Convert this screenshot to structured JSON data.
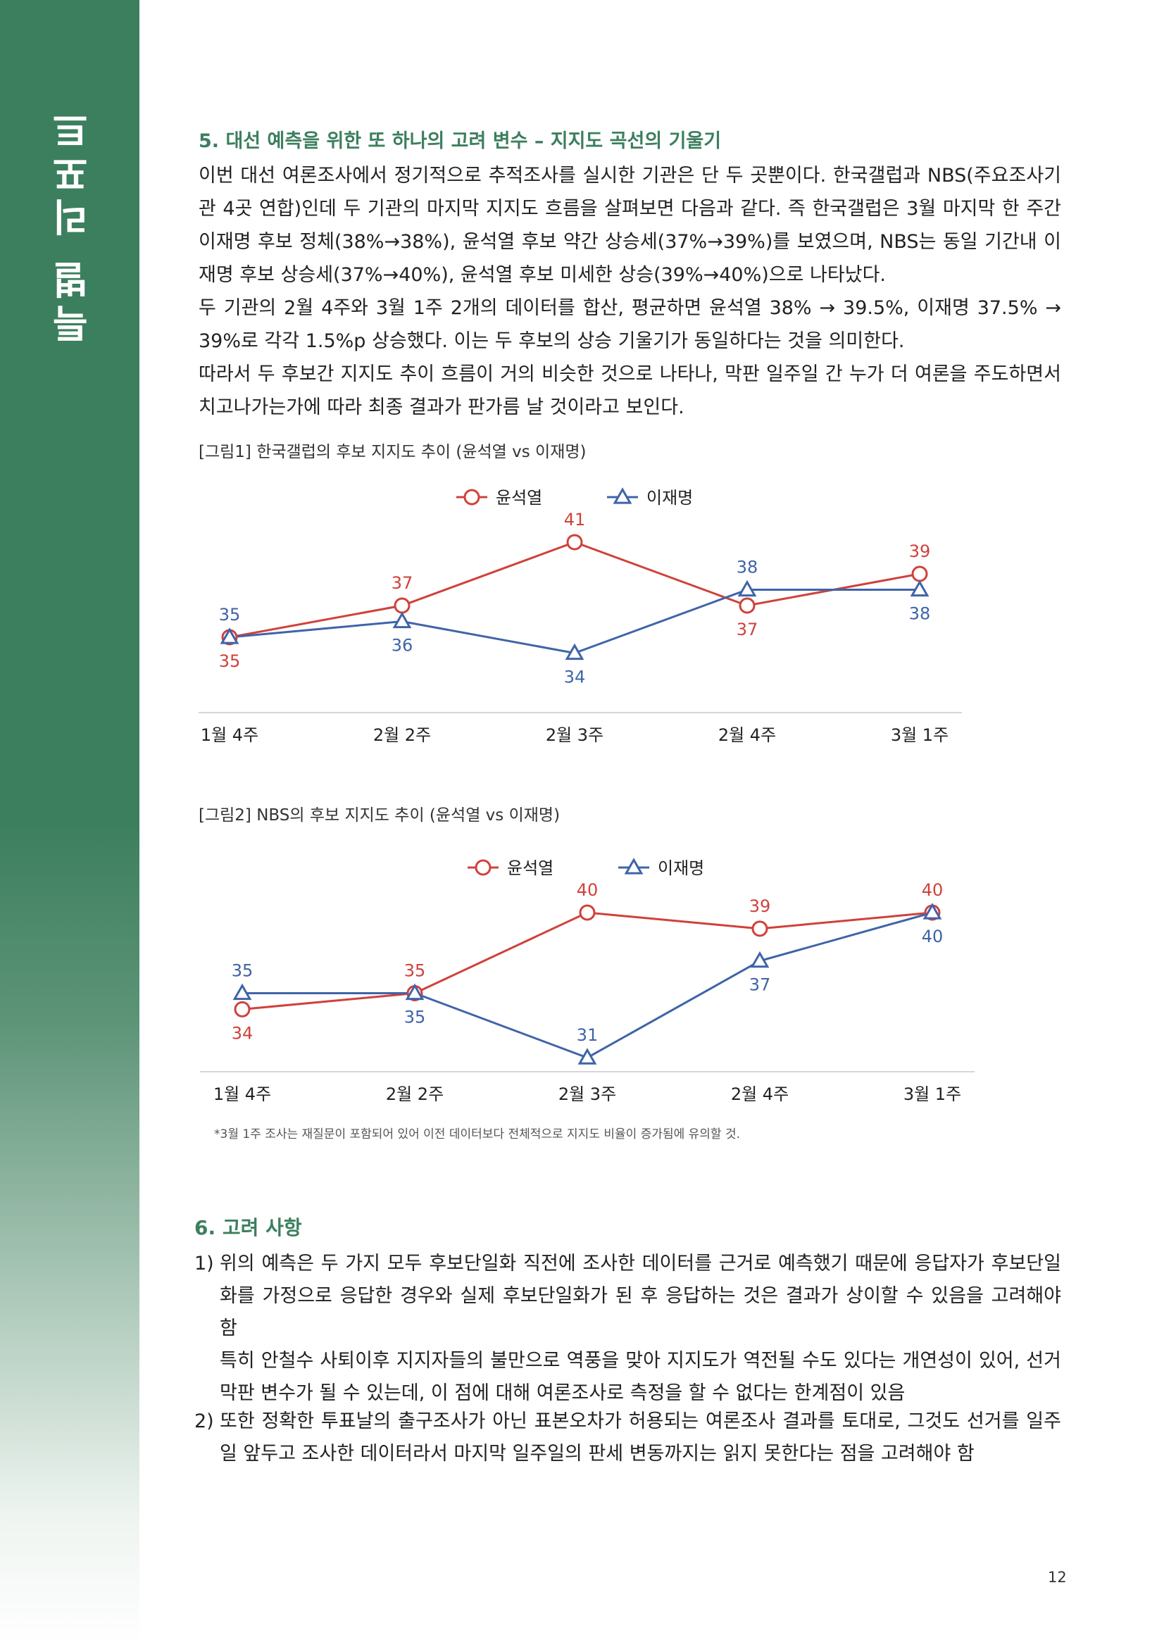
{
  "sidebar": {
    "label": "특별 리포트",
    "color": "#3c7f5e"
  },
  "section5": {
    "heading": "5. 대선 예측을 위한 또 하나의 고려 변수 – 지지도 곡선의 기울기",
    "paragraphs": [
      "이번 대선 여론조사에서 정기적으로 추적조사를 실시한 기관은 단 두 곳뿐이다. 한국갤럽과 NBS(주요조사기관 4곳 연합)인데 두 기관의 마지막 지지도 흐름을 살펴보면 다음과 같다. 즉 한국갤럽은 3월 마지막 한 주간 이재명 후보 정체(38%→38%), 윤석열 후보 약간 상승세(37%→39%)를 보였으며, NBS는 동일 기간내 이재명 후보 상승세(37%→40%), 윤석열 후보 미세한 상승(39%→40%)으로 나타났다.",
      "두 기관의 2월 4주와 3월 1주 2개의 데이터를 합산, 평균하면 윤석열 38% → 39.5%, 이재명 37.5% → 39%로 각각 1.5%p 상승했다. 이는 두 후보의 상승 기울기가 동일하다는 것을 의미한다.",
      "따라서 두 후보간 지지도 추이 흐름이 거의 비슷한 것으로 나타나, 막판 일주일 간 누가 더 여론을 주도하면서 치고나가는가에 따라 최종 결과가 판가름 날 것이라고 보인다."
    ]
  },
  "figure1": {
    "caption": "[그림1] 한국갤럽의 후보 지지도 추이 (윤석열 vs 이재명)"
  },
  "figure2": {
    "caption": "[그림2] NBS의 후보 지지도 추이 (윤석열 vs 이재명)"
  },
  "note": "*3월 1주 조사는 재질문이 포함되어 있어 이전 데이터보다 전체적으로 지지도 비율이 증가됨에 유의할 것.",
  "section6": {
    "heading": "6. 고려 사항",
    "items": [
      {
        "num": "1)",
        "text": "위의 예측은 두 가지 모두 후보단일화 직전에 조사한 데이터를 근거로 예측했기 때문에 응답자가 후보단일화를 가정으로 응답한 경우와 실제 후보단일화가 된 후 응답하는 것은 결과가 상이할 수 있음을 고려해야 함",
        "text2": "특히 안철수 사퇴이후 지지자들의 불만으로 역풍을 맞아 지지도가 역전될 수도 있다는 개연성이 있어, 선거 막판 변수가 될 수 있는데, 이 점에 대해 여론조사로 측정을 할 수 없다는 한계점이 있음"
      },
      {
        "num": "2)",
        "text": "또한 정확한 투표날의 출구조사가 아닌 표본오차가 허용되는 여론조사 결과를 토대로, 그것도 선거를 일주일 앞두고 조사한 데이터라서 마지막 일주일의 판세 변동까지는 읽지 못한다는 점을 고려해야 함"
      }
    ]
  },
  "page_number": "12",
  "chart_data": [
    {
      "type": "line",
      "categories": [
        "1월 4주",
        "2월 2주",
        "2월 3주",
        "2월 4주",
        "3월 1주"
      ],
      "series": [
        {
          "name": "윤석열",
          "values": [
            35,
            37,
            41,
            37,
            39
          ],
          "color": "#d0413a",
          "marker": "circle"
        },
        {
          "name": "이재명",
          "values": [
            35,
            36,
            34,
            38,
            38
          ],
          "color": "#3f64a8",
          "marker": "triangle"
        }
      ],
      "legend": "top-center",
      "grid": false
    },
    {
      "type": "line",
      "categories": [
        "1월 4주",
        "2월 2주",
        "2월 3주",
        "2월 4주",
        "3월 1주"
      ],
      "series": [
        {
          "name": "윤석열",
          "values": [
            34,
            35,
            40,
            39,
            40
          ],
          "color": "#d0413a",
          "marker": "circle"
        },
        {
          "name": "이재명",
          "values": [
            35,
            35,
            31,
            37,
            40
          ],
          "color": "#3f64a8",
          "marker": "triangle"
        }
      ],
      "legend": "top-center",
      "grid": false
    }
  ]
}
